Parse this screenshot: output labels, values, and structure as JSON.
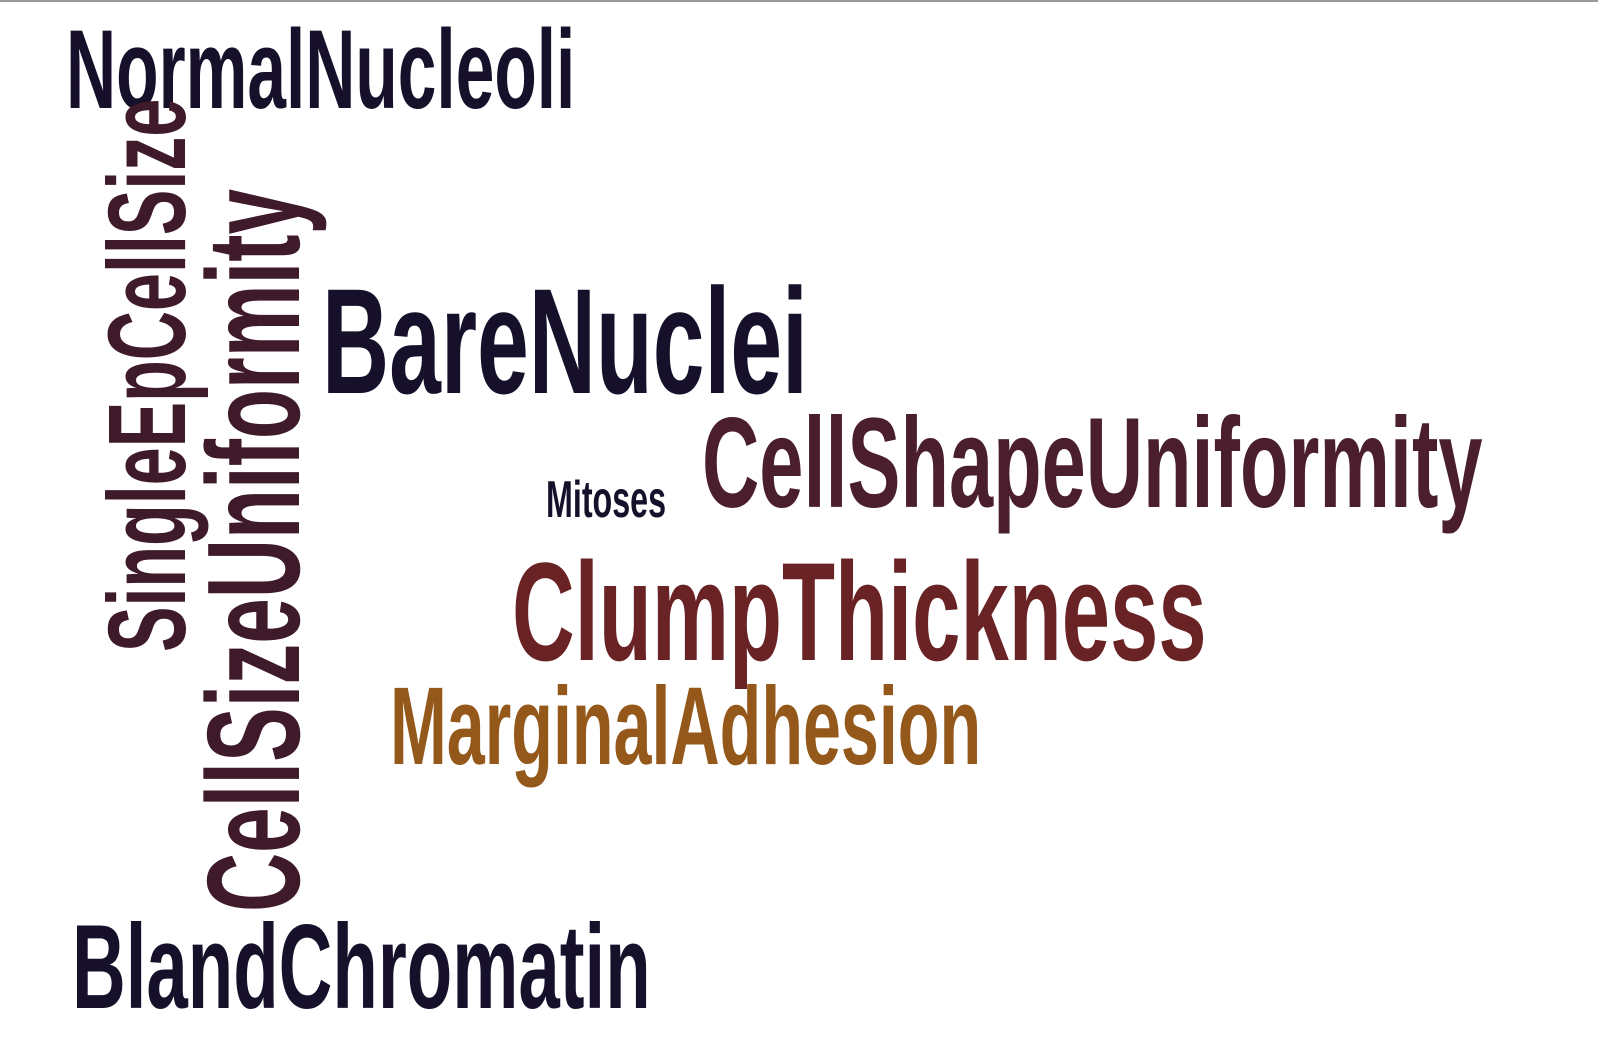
{
  "word_cloud": {
    "words": [
      {
        "text": "NormalNucleoli",
        "color": "#17102b",
        "orientation": "horizontal"
      },
      {
        "text": "SingleEpCellSize",
        "color": "#3f1a2b",
        "orientation": "vertical"
      },
      {
        "text": "CellSizeUniformity",
        "color": "#3f1a2b",
        "orientation": "vertical"
      },
      {
        "text": "BareNuclei",
        "color": "#17102b",
        "orientation": "horizontal"
      },
      {
        "text": "CellShapeUniformity",
        "color": "#4a1e2c",
        "orientation": "horizontal"
      },
      {
        "text": "Mitoses",
        "color": "#17102b",
        "orientation": "horizontal"
      },
      {
        "text": "ClumpThickness",
        "color": "#6a2325",
        "orientation": "horizontal"
      },
      {
        "text": "MarginalAdhesion",
        "color": "#94581a",
        "orientation": "horizontal"
      },
      {
        "text": "BlandChromatin",
        "color": "#17102b",
        "orientation": "horizontal"
      }
    ]
  }
}
